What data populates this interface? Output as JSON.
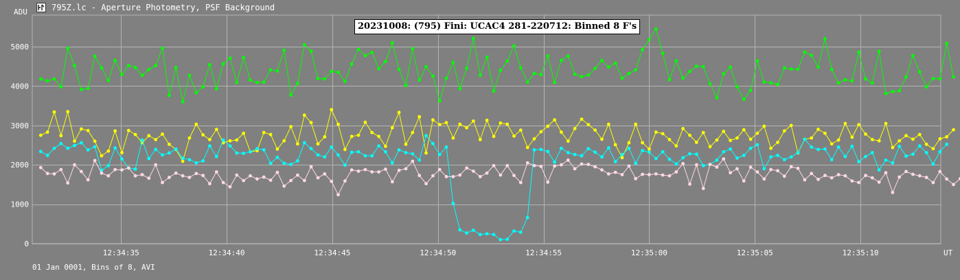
{
  "window": {
    "title": "795Z.lc - Aperture Photometry, PSF Background",
    "icon": "lightcurve-app-icon"
  },
  "footer": {
    "text": "01 Jan 0001, Bins of 8, AVI"
  },
  "chart_data": {
    "type": "line",
    "title": "20231008: (795) Fini: UCAC4 281-220712: Binned 8 F's",
    "ylabel": "ADU",
    "xlabel": "UT",
    "ylim": [
      0,
      5800
    ],
    "y_ticks": [
      0,
      1000,
      2000,
      3000,
      4000,
      5000
    ],
    "x_range_seconds": [
      -19.2,
      23.8
    ],
    "x_tick_offsets_seconds": [
      -15,
      -10,
      -5,
      0,
      5,
      10,
      15,
      20
    ],
    "x_tick_labels": [
      "12:34:35",
      "12:34:40",
      "12:34:45",
      "12:34:50",
      "12:34:55",
      "12:35:00",
      "12:35:05",
      "12:35:10"
    ],
    "x_offset_reference": "12:34:50",
    "x_start_offset_seconds": -18.8,
    "x_step_seconds": 0.32,
    "grid": true,
    "legend": "none",
    "series": [
      {
        "color": "#00ff00",
        "values": [
          4180,
          4130,
          4180,
          3980,
          4960,
          4520,
          3910,
          3940,
          4760,
          4460,
          4140,
          4650,
          4290,
          4520,
          4470,
          4270,
          4420,
          4520,
          4960,
          3760,
          4470,
          3600,
          4270,
          3830,
          3980,
          4540,
          3930,
          4560,
          4710,
          4090,
          4720,
          4150,
          4090,
          4100,
          4410,
          4380,
          4910,
          3770,
          4070,
          5050,
          4880,
          4190,
          4180,
          4370,
          4350,
          4120,
          4560,
          4930,
          4770,
          4850,
          4440,
          4620,
          5100,
          4420,
          4010,
          4950,
          4150,
          4490,
          4250,
          3620,
          4200,
          4600,
          3930,
          4450,
          5210,
          4270,
          4730,
          3870,
          4400,
          4630,
          5020,
          4460,
          4100,
          4320,
          4290,
          4760,
          4090,
          4650,
          4760,
          4300,
          4240,
          4280,
          4450,
          4650,
          4480,
          4580,
          4200,
          4320,
          4410,
          4920,
          5180,
          5450,
          4830,
          4160,
          4640,
          4200,
          4370,
          4500,
          4490,
          4060,
          3700,
          4310,
          4480,
          3980,
          3660,
          3890,
          4640,
          4100,
          4080,
          4040,
          4460,
          4430,
          4430,
          4860,
          4780,
          4480,
          5200,
          4420,
          4080,
          4160,
          4130,
          4860,
          4180,
          4080,
          4880,
          3810,
          3860,
          3880,
          4230,
          4770,
          4360,
          3980,
          4190,
          4180,
          5080,
          4230
        ]
      },
      {
        "color": "#ffff00",
        "values": [
          2750,
          2830,
          3340,
          2740,
          3350,
          2600,
          2910,
          2870,
          2600,
          2230,
          2350,
          2860,
          2310,
          2870,
          2770,
          2560,
          2740,
          2640,
          2780,
          2520,
          2390,
          2090,
          2680,
          3030,
          2760,
          2640,
          2900,
          2560,
          2610,
          2630,
          2800,
          2330,
          2360,
          2820,
          2770,
          2400,
          2610,
          2970,
          2530,
          3260,
          3070,
          2530,
          2710,
          3400,
          3030,
          2390,
          2720,
          2750,
          3080,
          2820,
          2720,
          2470,
          2940,
          3330,
          2520,
          2820,
          3220,
          2300,
          3140,
          3020,
          3070,
          2680,
          3030,
          2940,
          3110,
          2640,
          3130,
          2720,
          3060,
          3030,
          2730,
          2880,
          2440,
          2660,
          2840,
          2980,
          3140,
          2830,
          2600,
          2920,
          3160,
          3020,
          2880,
          2650,
          3030,
          2510,
          2180,
          2560,
          3030,
          2560,
          2400,
          2830,
          2790,
          2640,
          2480,
          2920,
          2750,
          2570,
          2820,
          2460,
          2630,
          2850,
          2620,
          2680,
          2890,
          2650,
          2800,
          2980,
          2420,
          2570,
          2860,
          3000,
          2300,
          2650,
          2680,
          2900,
          2800,
          2530,
          2630,
          3050,
          2700,
          3020,
          2780,
          2640,
          2610,
          3050,
          2440,
          2610,
          2740,
          2650,
          2770,
          2520,
          2410,
          2660,
          2710,
          2890
        ]
      },
      {
        "color": "#00ffff",
        "values": [
          2340,
          2240,
          2420,
          2540,
          2420,
          2490,
          2560,
          2380,
          2460,
          1860,
          1980,
          2430,
          2150,
          1920,
          1890,
          2630,
          2160,
          2390,
          2250,
          2300,
          2400,
          2170,
          2130,
          2050,
          2100,
          2480,
          2210,
          2630,
          2480,
          2300,
          2290,
          2330,
          2410,
          2380,
          2040,
          2190,
          2040,
          2010,
          2100,
          2560,
          2410,
          2250,
          2200,
          2450,
          2250,
          1990,
          2320,
          2330,
          2230,
          2230,
          2480,
          2330,
          2050,
          2380,
          2310,
          2280,
          2120,
          2740,
          2540,
          2260,
          2450,
          1020,
          350,
          270,
          340,
          230,
          250,
          230,
          100,
          110,
          320,
          290,
          660,
          2380,
          2390,
          2340,
          2070,
          2420,
          2310,
          2260,
          2230,
          2410,
          2320,
          2200,
          2430,
          2080,
          2260,
          2420,
          2040,
          2360,
          2320,
          2160,
          2330,
          2140,
          2020,
          2180,
          2280,
          2270,
          1980,
          2010,
          2120,
          2330,
          2400,
          2170,
          2240,
          2420,
          2510,
          1900,
          2200,
          2240,
          2130,
          2200,
          2310,
          2650,
          2450,
          2390,
          2400,
          2130,
          2450,
          2210,
          2470,
          2080,
          2210,
          2310,
          1870,
          2120,
          2050,
          2470,
          2220,
          2270,
          2480,
          2310,
          2020,
          2330,
          2520
        ]
      },
      {
        "color": "#ffd8e4",
        "values": [
          1930,
          1780,
          1770,
          1880,
          1540,
          2000,
          1830,
          1620,
          2110,
          1790,
          1720,
          1880,
          1870,
          1920,
          1720,
          1750,
          1660,
          2000,
          1550,
          1680,
          1790,
          1720,
          1680,
          1780,
          1730,
          1520,
          1820,
          1550,
          1440,
          1740,
          1600,
          1720,
          1640,
          1690,
          1610,
          1810,
          1460,
          1600,
          1740,
          1600,
          1950,
          1670,
          1770,
          1580,
          1240,
          1590,
          1870,
          1840,
          1880,
          1820,
          1820,
          1890,
          1570,
          1860,
          1900,
          2090,
          1730,
          1520,
          1720,
          1880,
          1700,
          1700,
          1740,
          1920,
          1840,
          1700,
          1790,
          1980,
          1740,
          1980,
          1730,
          1550,
          2050,
          1980,
          1960,
          1560,
          1970,
          2000,
          2120,
          1900,
          2020,
          2010,
          1950,
          1870,
          1770,
          1810,
          1750,
          1970,
          1650,
          1760,
          1750,
          1770,
          1740,
          1720,
          1820,
          2030,
          1510,
          2000,
          1400,
          2010,
          1940,
          2150,
          1800,
          1900,
          1590,
          1940,
          1820,
          1640,
          1880,
          1850,
          1710,
          1950,
          1910,
          1620,
          1780,
          1630,
          1730,
          1670,
          1750,
          1720,
          1590,
          1550,
          1730,
          1670,
          1560,
          1800,
          1300,
          1690,
          1830,
          1760,
          1720,
          1680,
          1550,
          1830,
          1640,
          1500,
          1650
        ]
      }
    ]
  }
}
